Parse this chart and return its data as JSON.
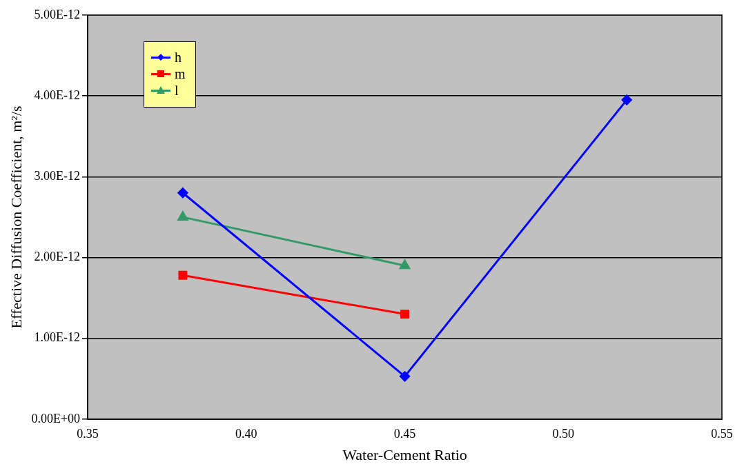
{
  "chart_data": {
    "type": "line",
    "xlabel": "Water-Cement Ratio",
    "ylabel": "Effective Diffusion Coefficient, m²/s",
    "x": [
      0.38,
      0.45,
      0.52
    ],
    "series": [
      {
        "name": "h",
        "color": "#0000ff",
        "marker": "diamond",
        "values": [
          2.8e-12,
          5.3e-13,
          3.95e-12
        ]
      },
      {
        "name": "m",
        "color": "#ff0000",
        "marker": "square",
        "values": [
          1.78e-12,
          1.3e-12,
          null
        ]
      },
      {
        "name": "l",
        "color": "#339966",
        "marker": "triangle",
        "values": [
          2.5e-12,
          1.9e-12,
          null
        ]
      }
    ],
    "xlim": [
      0.35,
      0.55
    ],
    "xticks": [
      {
        "value": 0.35,
        "label": "0.35"
      },
      {
        "value": 0.4,
        "label": "0.40"
      },
      {
        "value": 0.45,
        "label": "0.45"
      },
      {
        "value": 0.5,
        "label": "0.50"
      },
      {
        "value": 0.55,
        "label": "0.55"
      }
    ],
    "ylim": [
      0,
      5e-12
    ],
    "yticks": [
      {
        "value": 0,
        "label": "0.00E+00"
      },
      {
        "value": 1e-12,
        "label": "1.00E-12"
      },
      {
        "value": 2e-12,
        "label": "2.00E-12"
      },
      {
        "value": 3e-12,
        "label": "3.00E-12"
      },
      {
        "value": 4e-12,
        "label": "4.00E-12"
      },
      {
        "value": 5e-12,
        "label": "5.00E-12"
      }
    ],
    "grid": "y",
    "legend": "top left",
    "line_style": "solid"
  }
}
